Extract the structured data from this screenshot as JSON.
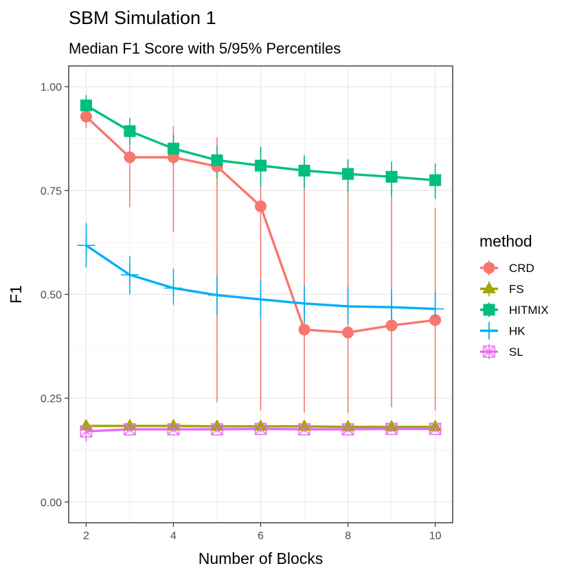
{
  "chart_data": {
    "type": "line",
    "title": "SBM Simulation 1",
    "subtitle": "Median F1 Score with 5/95% Percentiles",
    "xlabel": "Number of Blocks",
    "ylabel": "F1",
    "xlim": [
      1.6,
      10.4
    ],
    "ylim": [
      -0.05,
      1.05
    ],
    "x": [
      2,
      3,
      4,
      5,
      6,
      7,
      8,
      9,
      10
    ],
    "x_ticks": [
      "2",
      "4",
      "6",
      "8",
      "10"
    ],
    "y_ticks": [
      "0.00",
      "0.25",
      "0.50",
      "0.75",
      "1.00"
    ],
    "grid": true,
    "legend": {
      "title": "method",
      "position": "right"
    },
    "series": [
      {
        "name": "CRD",
        "color": "#F8766D",
        "shape": "circle",
        "median": [
          0.928,
          0.83,
          0.83,
          0.808,
          0.712,
          0.415,
          0.408,
          0.425,
          0.438
        ],
        "lower": [
          0.9,
          0.71,
          0.65,
          0.24,
          0.22,
          0.215,
          0.215,
          0.228,
          0.22
        ],
        "upper": [
          0.95,
          0.88,
          0.905,
          0.878,
          0.855,
          0.83,
          0.82,
          0.8,
          0.708
        ]
      },
      {
        "name": "FS",
        "color": "#A3A500",
        "shape": "triangle",
        "median": [
          0.183,
          0.183,
          0.183,
          0.182,
          0.182,
          0.182,
          0.181,
          0.181,
          0.181
        ],
        "lower": [
          0.178,
          0.178,
          0.178,
          0.178,
          0.178,
          0.178,
          0.178,
          0.178,
          0.178
        ],
        "upper": [
          0.188,
          0.188,
          0.188,
          0.187,
          0.187,
          0.187,
          0.186,
          0.186,
          0.186
        ]
      },
      {
        "name": "HITMIX",
        "color": "#00BF7D",
        "shape": "square",
        "median": [
          0.955,
          0.893,
          0.851,
          0.823,
          0.81,
          0.798,
          0.79,
          0.783,
          0.775
        ],
        "lower": [
          0.93,
          0.86,
          0.81,
          0.78,
          0.76,
          0.755,
          0.745,
          0.735,
          0.73
        ],
        "upper": [
          0.98,
          0.925,
          0.885,
          0.858,
          0.855,
          0.835,
          0.825,
          0.82,
          0.815
        ]
      },
      {
        "name": "HK",
        "color": "#00B0F6",
        "shape": "plus",
        "median": [
          0.618,
          0.547,
          0.515,
          0.498,
          0.488,
          0.478,
          0.471,
          0.469,
          0.465
        ],
        "lower": [
          0.565,
          0.5,
          0.475,
          0.45,
          0.442,
          0.432,
          0.43,
          0.43,
          0.425
        ],
        "upper": [
          0.672,
          0.592,
          0.562,
          0.545,
          0.535,
          0.522,
          0.518,
          0.513,
          0.505
        ]
      },
      {
        "name": "SL",
        "color": "#E76BF3",
        "shape": "boxx",
        "median": [
          0.17,
          0.175,
          0.175,
          0.175,
          0.176,
          0.175,
          0.175,
          0.176,
          0.176
        ],
        "lower": [
          0.145,
          0.168,
          0.168,
          0.168,
          0.168,
          0.168,
          0.168,
          0.168,
          0.168
        ],
        "upper": [
          0.185,
          0.182,
          0.182,
          0.182,
          0.182,
          0.182,
          0.182,
          0.182,
          0.182
        ]
      }
    ]
  }
}
